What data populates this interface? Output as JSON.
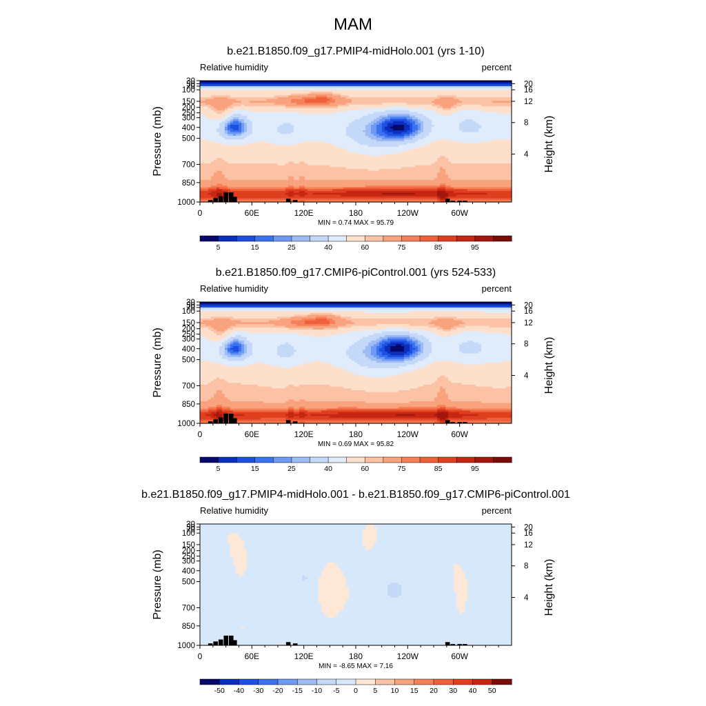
{
  "page": {
    "title": "MAM"
  },
  "chart_data": [
    {
      "type": "heatmap",
      "title": "b.e21.B1850.f09_g17.PMIP4-midHolo.001 (yrs 1-10)",
      "left_label": "Relative humidity",
      "right_label": "percent",
      "ylabel": "Pressure (mb)",
      "y2label": "Height (km)",
      "x_ticks": [
        "0",
        "60E",
        "120E",
        "180",
        "120W",
        "60W"
      ],
      "y_ticks": [
        "30",
        "50",
        "70",
        "100",
        "150",
        "200",
        "250",
        "300",
        "400",
        "500",
        "700",
        "850",
        "1000"
      ],
      "y2_ticks": [
        "20",
        "16",
        "12",
        "8",
        "4"
      ],
      "stats": "MIN =   0.74  MAX =  95.79",
      "min": 0.74,
      "max": 95.79,
      "colorbar_labels": [
        "5",
        "15",
        "25",
        "40",
        "60",
        "75",
        "85",
        "95"
      ],
      "colorbar_colors": [
        "#08086b",
        "#0a2fbf",
        "#1d4fe0",
        "#3a72f0",
        "#6f9af3",
        "#9dbcf5",
        "#c4d8f8",
        "#e0ecfb",
        "#fde0cc",
        "#fbc2a6",
        "#f9a27e",
        "#f68159",
        "#f0603a",
        "#e03f1f",
        "#c52713",
        "#a3160b",
        "#7a0b05"
      ],
      "field": "climatology",
      "mountains": [
        {
          "lon": 12,
          "top": 985
        },
        {
          "lon": 18,
          "top": 970
        },
        {
          "lon": 24,
          "top": 955
        },
        {
          "lon": 30,
          "top": 925
        },
        {
          "lon": 36,
          "top": 925
        },
        {
          "lon": 40,
          "top": 960
        },
        {
          "lon": 102,
          "top": 975
        },
        {
          "lon": 110,
          "top": 985
        },
        {
          "lon": 286,
          "top": 975
        },
        {
          "lon": 292,
          "top": 990
        },
        {
          "lon": 300,
          "top": 990
        },
        {
          "lon": 306,
          "top": 990
        }
      ]
    },
    {
      "type": "heatmap",
      "title": "b.e21.B1850.f09_g17.CMIP6-piControl.001 (yrs 524-533)",
      "left_label": "Relative humidity",
      "right_label": "percent",
      "ylabel": "Pressure (mb)",
      "y2label": "Height (km)",
      "x_ticks": [
        "0",
        "60E",
        "120E",
        "180",
        "120W",
        "60W"
      ],
      "y_ticks": [
        "30",
        "50",
        "70",
        "100",
        "150",
        "200",
        "250",
        "300",
        "400",
        "500",
        "700",
        "850",
        "1000"
      ],
      "y2_ticks": [
        "20",
        "16",
        "12",
        "8",
        "4"
      ],
      "stats": "MIN =   0.69  MAX =  95.82",
      "min": 0.69,
      "max": 95.82,
      "colorbar_labels": [
        "5",
        "15",
        "25",
        "40",
        "60",
        "75",
        "85",
        "95"
      ],
      "colorbar_colors": [
        "#08086b",
        "#0a2fbf",
        "#1d4fe0",
        "#3a72f0",
        "#6f9af3",
        "#9dbcf5",
        "#c4d8f8",
        "#e0ecfb",
        "#fde0cc",
        "#fbc2a6",
        "#f9a27e",
        "#f68159",
        "#f0603a",
        "#e03f1f",
        "#c52713",
        "#a3160b",
        "#7a0b05"
      ],
      "field": "climatology",
      "mountains": [
        {
          "lon": 12,
          "top": 985
        },
        {
          "lon": 18,
          "top": 970
        },
        {
          "lon": 24,
          "top": 955
        },
        {
          "lon": 30,
          "top": 925
        },
        {
          "lon": 36,
          "top": 925
        },
        {
          "lon": 40,
          "top": 960
        },
        {
          "lon": 102,
          "top": 975
        },
        {
          "lon": 110,
          "top": 985
        },
        {
          "lon": 286,
          "top": 975
        },
        {
          "lon": 292,
          "top": 990
        },
        {
          "lon": 300,
          "top": 990
        },
        {
          "lon": 306,
          "top": 990
        }
      ]
    },
    {
      "type": "heatmap",
      "title": "b.e21.B1850.f09_g17.PMIP4-midHolo.001 - b.e21.B1850.f09_g17.CMIP6-piControl.001",
      "left_label": "Relative humidity",
      "right_label": "percent",
      "ylabel": "Pressure (mb)",
      "y2label": "Height (km)",
      "x_ticks": [
        "0",
        "60E",
        "120E",
        "180",
        "120W",
        "60W"
      ],
      "y_ticks": [
        "30",
        "50",
        "70",
        "100",
        "150",
        "200",
        "250",
        "300",
        "400",
        "500",
        "700",
        "850",
        "1000"
      ],
      "y2_ticks": [
        "20",
        "16",
        "12",
        "8",
        "4"
      ],
      "stats": "MIN =  -8.65  MAX =   7.16",
      "min": -8.65,
      "max": 7.16,
      "colorbar_labels": [
        "-50",
        "-40",
        "-30",
        "-20",
        "-15",
        "-10",
        "-5",
        "0",
        "5",
        "10",
        "15",
        "20",
        "30",
        "40",
        "50"
      ],
      "colorbar_colors": [
        "#08086b",
        "#0a2fbf",
        "#1d4fe0",
        "#3a72f0",
        "#6f9af3",
        "#9dbcf5",
        "#c4d8f8",
        "#d8e8fb",
        "#fde7d7",
        "#fbc2a6",
        "#f9a27e",
        "#f68159",
        "#f0603a",
        "#e03f1f",
        "#c52713",
        "#7a0b05"
      ],
      "field": "difference",
      "mountains": [
        {
          "lon": 12,
          "top": 985
        },
        {
          "lon": 18,
          "top": 970
        },
        {
          "lon": 24,
          "top": 955
        },
        {
          "lon": 30,
          "top": 925
        },
        {
          "lon": 36,
          "top": 925
        },
        {
          "lon": 40,
          "top": 960
        },
        {
          "lon": 102,
          "top": 975
        },
        {
          "lon": 110,
          "top": 985
        },
        {
          "lon": 286,
          "top": 975
        },
        {
          "lon": 292,
          "top": 990
        },
        {
          "lon": 300,
          "top": 990
        },
        {
          "lon": 306,
          "top": 990
        }
      ]
    }
  ]
}
